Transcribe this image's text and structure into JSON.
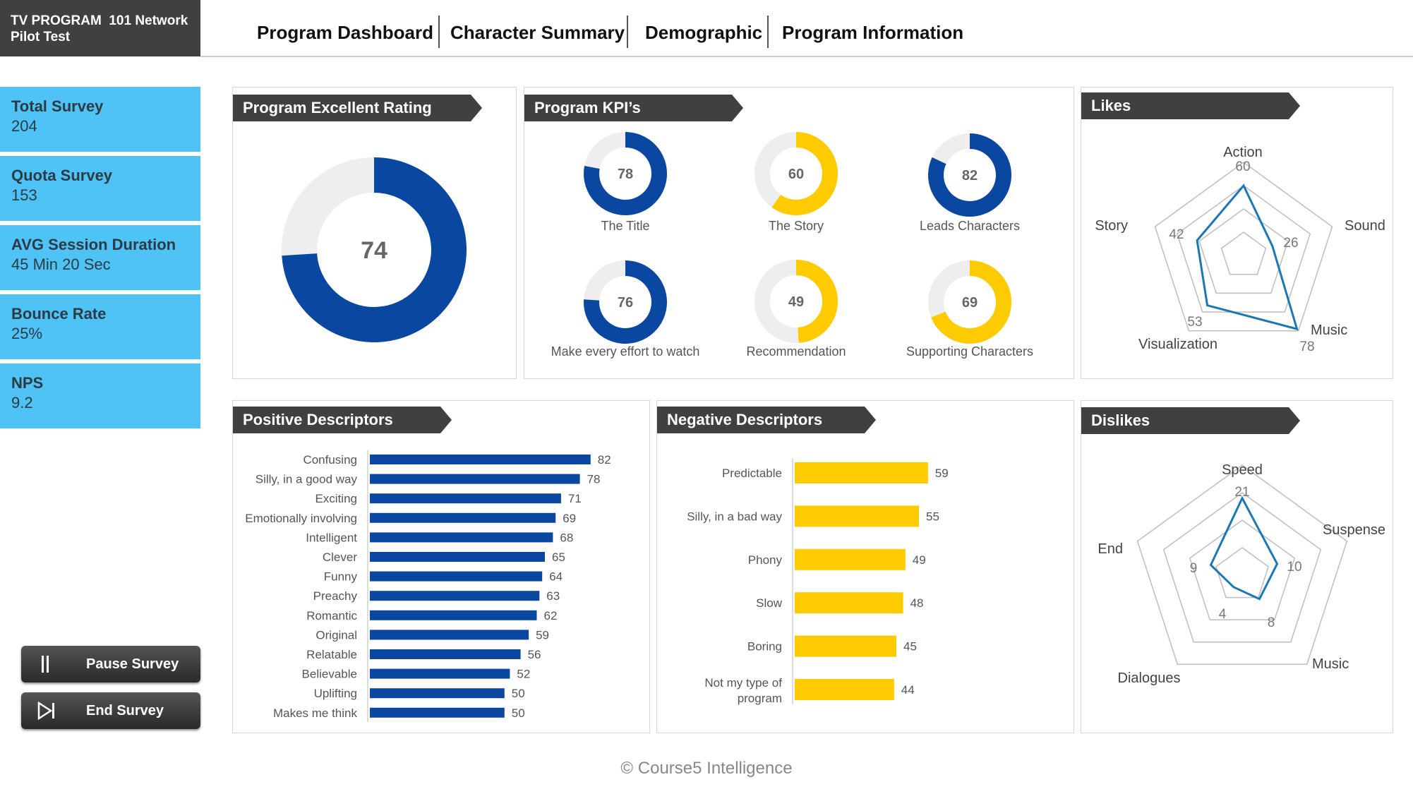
{
  "header": {
    "brand_line1": "TV PROGRAM  101 Network",
    "brand_line2": "Pilot Test",
    "nav": [
      "Program Dashboard",
      "Character Summary",
      "Demographic",
      "Program Information"
    ]
  },
  "sidebar": {
    "kpis": [
      {
        "label": "Total Survey",
        "value": "204"
      },
      {
        "label": "Quota Survey",
        "value": "153"
      },
      {
        "label": "AVG Session Duration",
        "value": "45 Min 20 Sec"
      },
      {
        "label": "Bounce Rate",
        "value": "25%"
      },
      {
        "label": "NPS",
        "value": "9.2"
      }
    ],
    "pause_label": "Pause Survey",
    "end_label": "End Survey"
  },
  "panels": {
    "rating_title": "Program Excellent Rating",
    "kpis_title": "Program KPI’s",
    "likes_title": "Likes",
    "positive_title": "Positive Descriptors",
    "negative_title": "Negative Descriptors",
    "dislikes_title": "Dislikes"
  },
  "colors": {
    "blue": "#0a47a1",
    "yellow": "#fecb00",
    "track": "#eeeeee",
    "radar_line": "#1a78b4"
  },
  "footer": "© Course5 Intelligence",
  "chart_data": [
    {
      "type": "pie",
      "id": "excellent-rating",
      "values": [
        74,
        26
      ],
      "center_label": "74"
    },
    {
      "type": "pie",
      "id": "program-kpis",
      "series": [
        {
          "name": "The Title",
          "value": 78,
          "color": "blue"
        },
        {
          "name": "The Story",
          "value": 60,
          "color": "yellow"
        },
        {
          "name": "Leads Characters",
          "value": 82,
          "color": "blue"
        },
        {
          "name": "Make every effort to watch",
          "value": 76,
          "color": "blue"
        },
        {
          "name": "Recommendation",
          "value": 49,
          "color": "yellow"
        },
        {
          "name": "Supporting Characters",
          "value": 69,
          "color": "yellow"
        }
      ]
    },
    {
      "type": "radar",
      "id": "likes",
      "categories": [
        "Action",
        "Sound",
        "Music",
        "Visualization",
        "Story"
      ],
      "values": [
        60,
        26,
        78,
        53,
        42
      ],
      "max": 80
    },
    {
      "type": "bar",
      "id": "positive-descriptors",
      "orientation": "horizontal",
      "categories": [
        "Confusing",
        "Silly, in a good way",
        "Exciting",
        "Emotionally involving",
        "Intelligent",
        "Clever",
        "Funny",
        "Preachy",
        "Romantic",
        "Original",
        "Relatable",
        "Believable",
        "Uplifting",
        "Makes me think"
      ],
      "values": [
        82,
        78,
        71,
        69,
        68,
        65,
        64,
        63,
        62,
        59,
        56,
        52,
        50,
        50
      ]
    },
    {
      "type": "bar",
      "id": "negative-descriptors",
      "orientation": "horizontal",
      "categories": [
        "Predictable",
        "Silly, in a bad way",
        "Phony",
        "Slow",
        "Boring",
        "Not my type of program"
      ],
      "values": [
        59,
        55,
        49,
        48,
        45,
        44
      ]
    },
    {
      "type": "radar",
      "id": "dislikes",
      "categories": [
        "Speed",
        "Suspense",
        "Music",
        "Dialogues",
        "End"
      ],
      "values": [
        21,
        10,
        8,
        4,
        9
      ],
      "max": 30
    }
  ]
}
